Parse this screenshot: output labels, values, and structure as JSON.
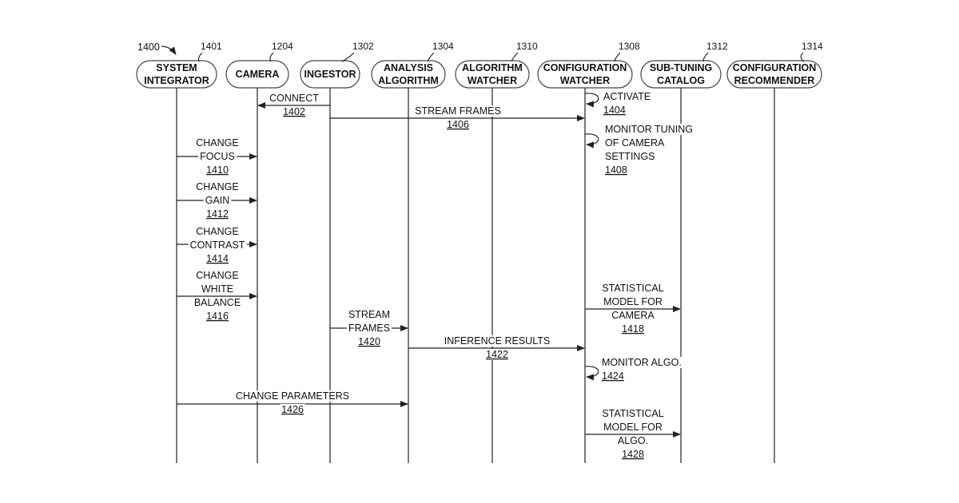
{
  "figure_ref": "1400",
  "actors": [
    {
      "id": "system-integrator",
      "ref": "1401",
      "lines": [
        "SYSTEM",
        "INTEGRATOR"
      ]
    },
    {
      "id": "camera",
      "ref": "1204",
      "lines": [
        "CAMERA"
      ]
    },
    {
      "id": "ingestor",
      "ref": "1302",
      "lines": [
        "INGESTOR"
      ]
    },
    {
      "id": "analysis-algorithm",
      "ref": "1304",
      "lines": [
        "ANALYSIS",
        "ALGORITHM"
      ]
    },
    {
      "id": "algorithm-watcher",
      "ref": "1310",
      "lines": [
        "ALGORITHM",
        "WATCHER"
      ]
    },
    {
      "id": "configuration-watcher",
      "ref": "1308",
      "lines": [
        "CONFIGURATION",
        "WATCHER"
      ]
    },
    {
      "id": "sub-tuning-catalog",
      "ref": "1312",
      "lines": [
        "SUB-TUNING",
        "CATALOG"
      ]
    },
    {
      "id": "configuration-recommender",
      "ref": "1314",
      "lines": [
        "CONFIGURATION",
        "RECOMMENDER"
      ]
    }
  ],
  "messages": [
    {
      "id": "connect",
      "from": "ingestor",
      "to": "camera",
      "lines": [
        "CONNECT"
      ],
      "number": "1402"
    },
    {
      "id": "activate",
      "from": "configuration-watcher",
      "to": "configuration-watcher",
      "lines": [
        "ACTIVATE"
      ],
      "number": "1404"
    },
    {
      "id": "stream-frames-1",
      "from": "ingestor",
      "to": "configuration-watcher",
      "lines": [
        "STREAM FRAMES"
      ],
      "number": "1406"
    },
    {
      "id": "monitor-tuning",
      "from": "configuration-watcher",
      "to": "configuration-watcher",
      "lines": [
        "MONITOR TUNING",
        "OF CAMERA",
        "SETTINGS"
      ],
      "number": "1408"
    },
    {
      "id": "change-focus",
      "from": "system-integrator",
      "to": "camera",
      "lines": [
        "CHANGE",
        "FOCUS"
      ],
      "number": "1410"
    },
    {
      "id": "change-gain",
      "from": "system-integrator",
      "to": "camera",
      "lines": [
        "CHANGE",
        "GAIN"
      ],
      "number": "1412"
    },
    {
      "id": "change-contrast",
      "from": "system-integrator",
      "to": "camera",
      "lines": [
        "CHANGE",
        "CONTRAST"
      ],
      "number": "1414"
    },
    {
      "id": "change-white-balance",
      "from": "system-integrator",
      "to": "camera",
      "lines": [
        "CHANGE",
        "WHITE",
        "BALANCE"
      ],
      "number": "1416"
    },
    {
      "id": "statistical-model-camera",
      "from": "configuration-watcher",
      "to": "sub-tuning-catalog",
      "lines": [
        "STATISTICAL",
        "MODEL FOR",
        "CAMERA"
      ],
      "number": "1418"
    },
    {
      "id": "stream-frames-2",
      "from": "ingestor",
      "to": "analysis-algorithm",
      "lines": [
        "STREAM",
        "FRAMES"
      ],
      "number": "1420"
    },
    {
      "id": "inference-results",
      "from": "analysis-algorithm",
      "to": "configuration-watcher",
      "lines": [
        "INFERENCE RESULTS"
      ],
      "number": "1422"
    },
    {
      "id": "monitor-algo",
      "from": "configuration-watcher",
      "to": "configuration-watcher",
      "lines": [
        "MONITOR ALGO."
      ],
      "number": "1424"
    },
    {
      "id": "change-parameters",
      "from": "system-integrator",
      "to": "analysis-algorithm",
      "lines": [
        "CHANGE PARAMETERS"
      ],
      "number": "1426"
    },
    {
      "id": "statistical-model-algo",
      "from": "configuration-watcher",
      "to": "sub-tuning-catalog",
      "lines": [
        "STATISTICAL",
        "MODEL FOR",
        "ALGO."
      ],
      "number": "1428"
    }
  ]
}
